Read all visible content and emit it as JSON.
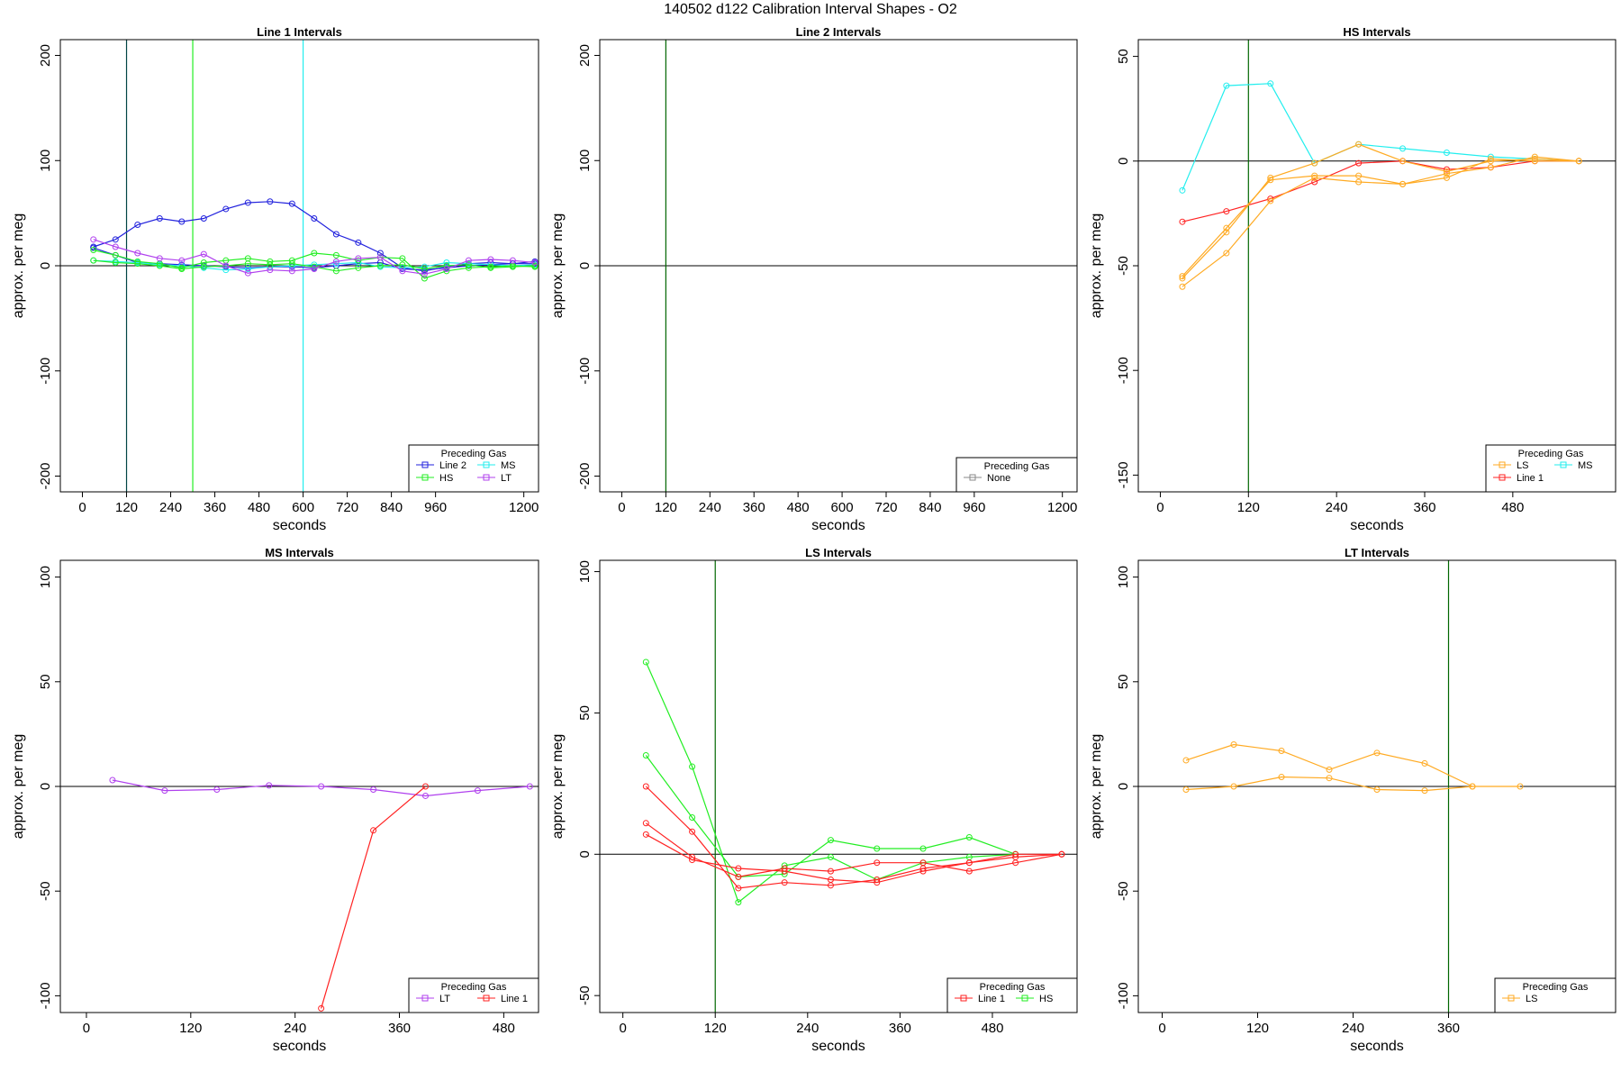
{
  "page_title": "140502   d122   Calibration Interval Shapes - O2",
  "colors": {
    "Line 1": "#ff2222",
    "Line 2": "#2222dd",
    "HS": "#22ee22",
    "MS": "#22eeee",
    "LT": "#b040ee",
    "LS": "#ffaa22",
    "None": "#888888",
    "dark_green": "#006600",
    "zero_line": "#000000"
  },
  "chart_data": [
    {
      "type": "line",
      "title": "Line 1 Intervals",
      "xlabel": "seconds",
      "ylabel": "approx. per meg",
      "xlim": [
        -60,
        1240
      ],
      "ylim": [
        -215,
        215
      ],
      "xticks": [
        "0",
        "120",
        "240",
        "360",
        "480",
        "600",
        "720",
        "840",
        "960",
        "1200"
      ],
      "yticks": [
        "-200",
        "-100",
        "0",
        "100",
        "200"
      ],
      "vlines": [
        {
          "x": 120,
          "color": "#004444"
        },
        {
          "x": 300,
          "color": "#22ee22"
        },
        {
          "x": 600,
          "color": "#22eeee"
        }
      ],
      "legend": {
        "title": "Preceding Gas",
        "position": "bottom-right",
        "columns": 2,
        "entries": [
          "Line 2",
          "MS",
          "HS",
          "LT"
        ]
      },
      "series": [
        {
          "name": "Line 2",
          "color": "#2222dd",
          "x": [
            30,
            90,
            150,
            210,
            270,
            330,
            390,
            450,
            510,
            570,
            630,
            690,
            750,
            810,
            870,
            930,
            990,
            1050,
            1110,
            1170,
            1230
          ],
          "values": [
            18,
            25,
            39,
            45,
            42,
            45,
            54,
            60,
            61,
            59,
            45,
            30,
            22,
            12,
            -2,
            -5,
            -1,
            2,
            3,
            2,
            4
          ]
        },
        {
          "name": "Line 2",
          "color": "#2222dd",
          "x": [
            30,
            90,
            150,
            210,
            270,
            330,
            390,
            450,
            510,
            570,
            630,
            690,
            750,
            810,
            870,
            930,
            990,
            1050,
            1110,
            1170,
            1230
          ],
          "values": [
            17,
            10,
            3,
            2,
            1,
            0,
            -1,
            -2,
            -1,
            -1,
            -2,
            0,
            2,
            3,
            -3,
            -4,
            -2,
            0,
            1,
            2,
            2
          ]
        },
        {
          "name": "MS",
          "color": "#22eeee",
          "x": [
            30,
            90,
            150,
            210,
            270,
            330,
            390,
            450,
            510,
            570,
            630,
            690,
            750,
            810,
            870,
            930,
            990,
            1050,
            1110,
            1170,
            1230
          ],
          "values": [
            5,
            4,
            3,
            1,
            0,
            -2,
            -4,
            -3,
            -1,
            0,
            1,
            2,
            3,
            -1,
            -2,
            -1,
            3,
            2,
            1,
            0,
            1
          ]
        },
        {
          "name": "HS",
          "color": "#22ee22",
          "x": [
            30,
            90,
            150,
            210,
            270,
            330,
            390,
            450,
            510,
            570,
            630,
            690,
            750,
            810,
            870,
            930,
            990,
            1050,
            1110,
            1170,
            1230
          ],
          "values": [
            15,
            10,
            4,
            2,
            -2,
            3,
            5,
            7,
            4,
            5,
            12,
            10,
            5,
            8,
            7,
            -12,
            -5,
            -2,
            -1,
            0,
            -1
          ]
        },
        {
          "name": "HS",
          "color": "#22ee22",
          "x": [
            30,
            90,
            150,
            210,
            270,
            330,
            390,
            450,
            510,
            570,
            630,
            690,
            750,
            810,
            870,
            930,
            990,
            1050,
            1110,
            1170,
            1230
          ],
          "values": [
            5,
            3,
            2,
            0,
            -3,
            -1,
            0,
            2,
            1,
            2,
            -1,
            -5,
            -2,
            0,
            1,
            -3,
            0,
            1,
            -2,
            -1,
            0
          ]
        },
        {
          "name": "LT",
          "color": "#b040ee",
          "x": [
            30,
            90,
            150,
            210,
            270,
            330,
            390,
            450,
            510,
            570,
            630,
            690,
            750,
            810,
            870,
            930,
            990,
            1050,
            1110,
            1170,
            1230
          ],
          "values": [
            25,
            18,
            12,
            7,
            5,
            11,
            0,
            -7,
            -4,
            -5,
            -3,
            4,
            7,
            8,
            -5,
            -8,
            -3,
            5,
            6,
            5,
            3
          ]
        }
      ]
    },
    {
      "type": "line",
      "title": "Line 2 Intervals",
      "xlabel": "seconds",
      "ylabel": "approx. per meg",
      "xlim": [
        -60,
        1240
      ],
      "ylim": [
        -215,
        215
      ],
      "xticks": [
        "0",
        "120",
        "240",
        "360",
        "480",
        "600",
        "720",
        "840",
        "960",
        "1200"
      ],
      "yticks": [
        "-200",
        "-100",
        "0",
        "100",
        "200"
      ],
      "vlines": [
        {
          "x": 120,
          "color": "#006600"
        }
      ],
      "legend": {
        "title": "Preceding Gas",
        "position": "bottom-right",
        "columns": 1,
        "entries": [
          "None"
        ]
      },
      "series": []
    },
    {
      "type": "line",
      "title": "HS Intervals",
      "xlabel": "seconds",
      "ylabel": "approx. per meg",
      "xlim": [
        -30,
        620
      ],
      "ylim": [
        -158,
        58
      ],
      "xticks": [
        "0",
        "120",
        "240",
        "360",
        "480"
      ],
      "yticks": [
        "-150",
        "-100",
        "-50",
        "0",
        "50"
      ],
      "vlines": [
        {
          "x": 120,
          "color": "#006600"
        }
      ],
      "legend": {
        "title": "Preceding Gas",
        "position": "bottom-right",
        "columns": 2,
        "entries": [
          "LS",
          "MS",
          "Line 1"
        ]
      },
      "series": [
        {
          "name": "MS",
          "color": "#22eeee",
          "x": [
            30,
            90,
            150,
            210,
            270,
            330,
            390,
            450,
            510,
            570
          ],
          "values": [
            -14,
            36,
            37,
            -1,
            8,
            6,
            4,
            2,
            1,
            0
          ]
        },
        {
          "name": "Line 1",
          "color": "#ff2222",
          "x": [
            30,
            90,
            150,
            210,
            270,
            330,
            390,
            450,
            510,
            570
          ],
          "values": [
            -29,
            -24,
            -18,
            -10,
            -1,
            0,
            -4,
            -3,
            0,
            0
          ]
        },
        {
          "name": "LS",
          "color": "#ffaa22",
          "x": [
            30,
            90,
            150,
            210,
            270,
            330,
            390,
            450,
            510,
            570
          ],
          "values": [
            -55,
            -32,
            -9,
            -7,
            -7,
            -11,
            -6,
            -3,
            2,
            0
          ]
        },
        {
          "name": "LS",
          "color": "#ffaa22",
          "x": [
            30,
            90,
            150,
            210,
            270,
            330,
            390,
            450,
            510,
            570
          ],
          "values": [
            -56,
            -34,
            -8,
            -1,
            8,
            0,
            -5,
            0,
            1,
            0
          ]
        },
        {
          "name": "LS",
          "color": "#ffaa22",
          "x": [
            30,
            90,
            150,
            210,
            270,
            330,
            390,
            450,
            510,
            570
          ],
          "values": [
            -60,
            -44,
            -19,
            -8,
            -10,
            -11,
            -8,
            1,
            0,
            0
          ]
        }
      ]
    },
    {
      "type": "line",
      "title": "MS Intervals",
      "xlabel": "seconds",
      "ylabel": "approx. per meg",
      "xlim": [
        -30,
        520
      ],
      "ylim": [
        -108,
        108
      ],
      "xticks": [
        "0",
        "120",
        "240",
        "360",
        "480"
      ],
      "yticks": [
        "-100",
        "-50",
        "0",
        "50",
        "100"
      ],
      "vlines": [],
      "legend": {
        "title": "Preceding Gas",
        "position": "bottom-right",
        "columns": 2,
        "entries": [
          "LT",
          "Line 1"
        ]
      },
      "series": [
        {
          "name": "LT",
          "color": "#b040ee",
          "x": [
            30,
            90,
            150,
            210,
            270,
            330,
            390,
            450,
            510
          ],
          "values": [
            3,
            -2,
            -1.5,
            0.5,
            0,
            -1.5,
            -4.5,
            -2,
            0
          ]
        },
        {
          "name": "Line 1",
          "color": "#ff2222",
          "x": [
            270,
            330,
            390
          ],
          "values": [
            -106,
            -21,
            0
          ]
        }
      ]
    },
    {
      "type": "line",
      "title": "LS Intervals",
      "xlabel": "seconds",
      "ylabel": "approx. per meg",
      "xlim": [
        -30,
        590
      ],
      "ylim": [
        -56,
        104
      ],
      "xticks": [
        "0",
        "120",
        "240",
        "360",
        "480"
      ],
      "yticks": [
        "-50",
        "0",
        "50",
        "100"
      ],
      "vlines": [
        {
          "x": 120,
          "color": "#006600"
        }
      ],
      "legend": {
        "title": "Preceding Gas",
        "position": "bottom-right",
        "columns": 2,
        "entries": [
          "Line 1",
          "HS"
        ]
      },
      "series": [
        {
          "name": "HS",
          "color": "#22ee22",
          "x": [
            30,
            90,
            150,
            210,
            270,
            330,
            390,
            450,
            510
          ],
          "values": [
            68,
            31,
            -17,
            -4,
            -1,
            -9,
            -3,
            -1,
            0
          ]
        },
        {
          "name": "HS",
          "color": "#22ee22",
          "x": [
            30,
            90,
            150,
            210,
            270,
            330,
            390,
            450,
            510
          ],
          "values": [
            35,
            13,
            -8,
            -7,
            5,
            2,
            2,
            6,
            0
          ]
        },
        {
          "name": "Line 1",
          "color": "#ff2222",
          "x": [
            30,
            90,
            150,
            210,
            270,
            330,
            390,
            450,
            510,
            570
          ],
          "values": [
            24,
            8,
            -12,
            -10,
            -11,
            -9,
            -5,
            -3,
            -1,
            0
          ]
        },
        {
          "name": "Line 1",
          "color": "#ff2222",
          "x": [
            30,
            90,
            150,
            210,
            270,
            330,
            390,
            450,
            510,
            570
          ],
          "values": [
            11,
            -1,
            -8,
            -5,
            -6,
            -3,
            -3,
            -6,
            -3,
            0
          ]
        },
        {
          "name": "Line 1",
          "color": "#ff2222",
          "x": [
            30,
            90,
            150,
            210,
            270,
            330,
            390,
            450,
            510,
            570
          ],
          "values": [
            7,
            -2,
            -5,
            -6,
            -9,
            -10,
            -6,
            -3,
            0,
            0
          ]
        }
      ]
    },
    {
      "type": "line",
      "title": "LT Intervals",
      "xlabel": "seconds",
      "ylabel": "approx. per meg",
      "xlim": [
        -30,
        570
      ],
      "ylim": [
        -108,
        108
      ],
      "xticks": [
        "0",
        "120",
        "240",
        "360"
      ],
      "yticks": [
        "-100",
        "-50",
        "0",
        "50",
        "100"
      ],
      "vlines": [
        {
          "x": 360,
          "color": "#006600"
        }
      ],
      "legend": {
        "title": "Preceding Gas",
        "position": "bottom-right",
        "columns": 1,
        "entries": [
          "LS"
        ]
      },
      "series": [
        {
          "name": "LS",
          "color": "#ffaa22",
          "x": [
            30,
            90,
            150,
            210,
            270,
            330,
            390
          ],
          "values": [
            12.5,
            20,
            17,
            8,
            16,
            11,
            0
          ]
        },
        {
          "name": "LS",
          "color": "#ffaa22",
          "x": [
            30,
            90,
            150,
            210,
            270,
            330,
            390,
            450
          ],
          "values": [
            -1.5,
            0,
            4.5,
            4,
            -1.5,
            -2,
            0,
            0
          ]
        }
      ]
    }
  ]
}
